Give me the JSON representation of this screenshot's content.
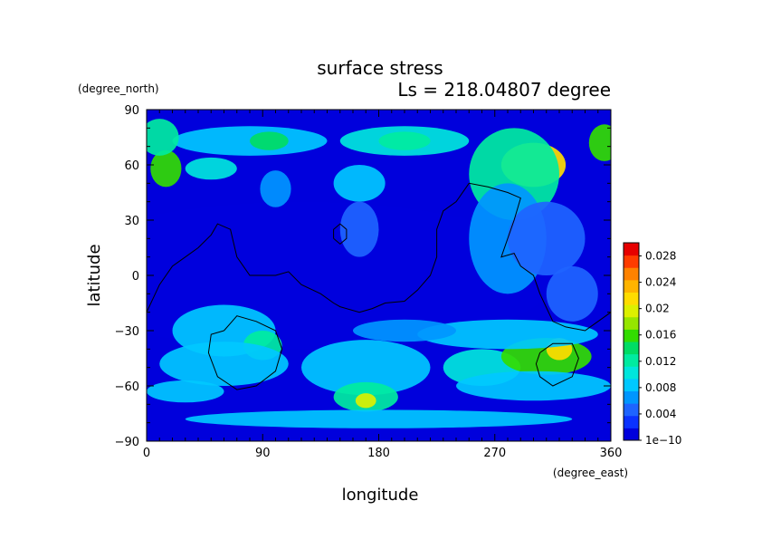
{
  "chart_data": {
    "type": "heatmap",
    "title": "surface stress",
    "subtitle": "Ls = 218.04807 degree",
    "xlabel": "longitude",
    "ylabel": "latitude",
    "xunit": "(degree_east)",
    "yunit": "(degree_north)",
    "xlim": [
      0,
      360
    ],
    "ylim": [
      -90,
      90
    ],
    "xticks": [
      "0",
      "90",
      "180",
      "270",
      "360"
    ],
    "yticks": [
      "90",
      "60",
      "30",
      "0",
      "−30",
      "−60",
      "−90"
    ],
    "colorbar": {
      "min": 0,
      "max": 0.03,
      "tick_labels": [
        "0.028",
        "0.024",
        "0.02",
        "0.016",
        "0.012",
        "0.008",
        "0.004",
        "1e−10"
      ],
      "tick_values": [
        0.028,
        0.024,
        0.02,
        0.016,
        0.012,
        0.008,
        0.004,
        0.0
      ],
      "colors": [
        "#0000dc",
        "#0a32ff",
        "#1e64ff",
        "#0096ff",
        "#00c8ff",
        "#00e6dc",
        "#00eba0",
        "#00dc64",
        "#32dc00",
        "#96e600",
        "#dcf000",
        "#ffdc00",
        "#ffb400",
        "#ff8200",
        "#ff3c00",
        "#e60000"
      ]
    },
    "hotspots": [
      {
        "lon": 120,
        "lat": 0,
        "value": 0.001,
        "rx": 200,
        "ry": 40
      },
      {
        "lon": 80,
        "lat": 73,
        "value": 0.009,
        "rx": 60,
        "ry": 8
      },
      {
        "lon": 200,
        "lat": 73,
        "value": 0.01,
        "rx": 50,
        "ry": 8
      },
      {
        "lon": 95,
        "lat": 73,
        "value": 0.014,
        "rx": 15,
        "ry": 5
      },
      {
        "lon": 200,
        "lat": 73,
        "value": 0.013,
        "rx": 20,
        "ry": 5
      },
      {
        "lon": 15,
        "lat": 58,
        "value": 0.016,
        "rx": 12,
        "ry": 10
      },
      {
        "lon": 355,
        "lat": 72,
        "value": 0.016,
        "rx": 12,
        "ry": 10
      },
      {
        "lon": 10,
        "lat": 75,
        "value": 0.012,
        "rx": 15,
        "ry": 10
      },
      {
        "lon": 300,
        "lat": 60,
        "value": 0.022,
        "rx": 25,
        "ry": 12
      },
      {
        "lon": 285,
        "lat": 55,
        "value": 0.012,
        "rx": 35,
        "ry": 25
      },
      {
        "lon": 280,
        "lat": 20,
        "value": 0.006,
        "rx": 30,
        "ry": 30
      },
      {
        "lon": 310,
        "lat": 20,
        "value": 0.004,
        "rx": 30,
        "ry": 20
      },
      {
        "lon": 50,
        "lat": 58,
        "value": 0.01,
        "rx": 20,
        "ry": 6
      },
      {
        "lon": 165,
        "lat": 50,
        "value": 0.008,
        "rx": 20,
        "ry": 10
      },
      {
        "lon": 100,
        "lat": 47,
        "value": 0.006,
        "rx": 12,
        "ry": 10
      },
      {
        "lon": 165,
        "lat": 25,
        "value": 0.005,
        "rx": 15,
        "ry": 15
      },
      {
        "lon": 60,
        "lat": -30,
        "value": 0.008,
        "rx": 40,
        "ry": 14
      },
      {
        "lon": 90,
        "lat": -38,
        "value": 0.013,
        "rx": 15,
        "ry": 8
      },
      {
        "lon": 60,
        "lat": -48,
        "value": 0.009,
        "rx": 50,
        "ry": 12
      },
      {
        "lon": 170,
        "lat": -50,
        "value": 0.008,
        "rx": 50,
        "ry": 15
      },
      {
        "lon": 170,
        "lat": -66,
        "value": 0.013,
        "rx": 25,
        "ry": 8
      },
      {
        "lon": 170,
        "lat": -68,
        "value": 0.02,
        "rx": 8,
        "ry": 4
      },
      {
        "lon": 30,
        "lat": -63,
        "value": 0.008,
        "rx": 30,
        "ry": 6
      },
      {
        "lon": 260,
        "lat": -50,
        "value": 0.01,
        "rx": 30,
        "ry": 10
      },
      {
        "lon": 310,
        "lat": -44,
        "value": 0.016,
        "rx": 35,
        "ry": 10
      },
      {
        "lon": 320,
        "lat": -40,
        "value": 0.021,
        "rx": 10,
        "ry": 6
      },
      {
        "lon": 280,
        "lat": -32,
        "value": 0.009,
        "rx": 70,
        "ry": 8
      },
      {
        "lon": 300,
        "lat": -60,
        "value": 0.008,
        "rx": 60,
        "ry": 8
      },
      {
        "lon": 200,
        "lat": -30,
        "value": 0.006,
        "rx": 40,
        "ry": 6
      },
      {
        "lon": 180,
        "lat": -78,
        "value": 0.008,
        "rx": 150,
        "ry": 5
      },
      {
        "lon": 330,
        "lat": -10,
        "value": 0.005,
        "rx": 20,
        "ry": 15
      }
    ],
    "contours": [
      [
        [
          0,
          -20
        ],
        [
          10,
          -5
        ],
        [
          20,
          5
        ],
        [
          30,
          10
        ],
        [
          40,
          15
        ],
        [
          50,
          22
        ],
        [
          55,
          28
        ],
        [
          65,
          25
        ],
        [
          70,
          10
        ],
        [
          80,
          0
        ],
        [
          100,
          0
        ],
        [
          110,
          2
        ],
        [
          120,
          -5
        ],
        [
          135,
          -10
        ],
        [
          145,
          -15
        ],
        [
          150,
          -17
        ],
        [
          165,
          -20
        ],
        [
          175,
          -18
        ],
        [
          185,
          -15
        ],
        [
          200,
          -14
        ],
        [
          210,
          -8
        ],
        [
          220,
          0
        ],
        [
          225,
          10
        ],
        [
          225,
          25
        ],
        [
          230,
          35
        ],
        [
          240,
          40
        ],
        [
          250,
          50
        ],
        [
          265,
          48
        ],
        [
          280,
          45
        ],
        [
          290,
          42
        ],
        [
          285,
          30
        ],
        [
          280,
          20
        ],
        [
          275,
          10
        ],
        [
          285,
          12
        ],
        [
          290,
          5
        ],
        [
          300,
          0
        ],
        [
          305,
          -10
        ],
        [
          315,
          -25
        ],
        [
          325,
          -28
        ],
        [
          340,
          -30
        ],
        [
          350,
          -25
        ],
        [
          360,
          -20
        ]
      ],
      [
        [
          145,
          20
        ],
        [
          145,
          25
        ],
        [
          150,
          28
        ],
        [
          155,
          25
        ],
        [
          155,
          20
        ],
        [
          150,
          17
        ],
        [
          145,
          20
        ]
      ],
      [
        [
          60,
          -30
        ],
        [
          70,
          -22
        ],
        [
          85,
          -25
        ],
        [
          100,
          -30
        ],
        [
          105,
          -40
        ],
        [
          100,
          -52
        ],
        [
          85,
          -60
        ],
        [
          70,
          -62
        ],
        [
          55,
          -55
        ],
        [
          48,
          -42
        ],
        [
          50,
          -32
        ],
        [
          60,
          -30
        ]
      ],
      [
        [
          305,
          -42
        ],
        [
          315,
          -37
        ],
        [
          330,
          -37
        ],
        [
          335,
          -45
        ],
        [
          330,
          -55
        ],
        [
          315,
          -60
        ],
        [
          305,
          -55
        ],
        [
          302,
          -48
        ],
        [
          305,
          -42
        ]
      ]
    ]
  }
}
